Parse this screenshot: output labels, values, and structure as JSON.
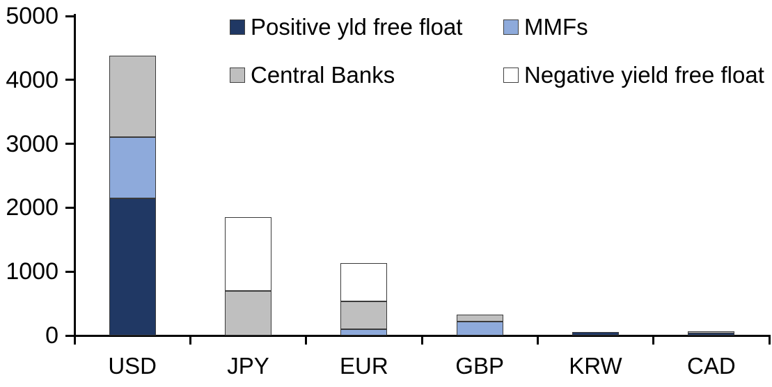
{
  "chart_data": {
    "type": "bar",
    "stacked": true,
    "title": "",
    "xlabel": "",
    "ylabel": "",
    "categories": [
      "USD",
      "JPY",
      "EUR",
      "GBP",
      "KRW",
      "CAD"
    ],
    "series": [
      {
        "name": "Positive yld free float",
        "color": "#203864",
        "values": [
          2150,
          0,
          0,
          0,
          50,
          45
        ]
      },
      {
        "name": "MMFs",
        "color": "#8EAADB",
        "values": [
          950,
          0,
          100,
          220,
          0,
          0
        ]
      },
      {
        "name": "Central Banks",
        "color": "#BFBFBF",
        "values": [
          1280,
          700,
          430,
          110,
          0,
          25
        ]
      },
      {
        "name": "Negative yield free float",
        "color": "#FFFFFF",
        "values": [
          0,
          1150,
          600,
          0,
          0,
          0
        ]
      }
    ],
    "totals": [
      4380,
      1850,
      1130,
      330,
      50,
      70
    ],
    "ylim": [
      0,
      5000
    ],
    "yticks": [
      0,
      1000,
      2000,
      3000,
      4000,
      5000
    ],
    "grid": false,
    "legend_position": "top",
    "legend_rows": [
      [
        "Positive yld free float",
        "MMFs"
      ],
      [
        "Central Banks",
        "Negative yield free float"
      ]
    ],
    "axis_color": "#000000",
    "segment_border_color": "#3a3a3a"
  }
}
